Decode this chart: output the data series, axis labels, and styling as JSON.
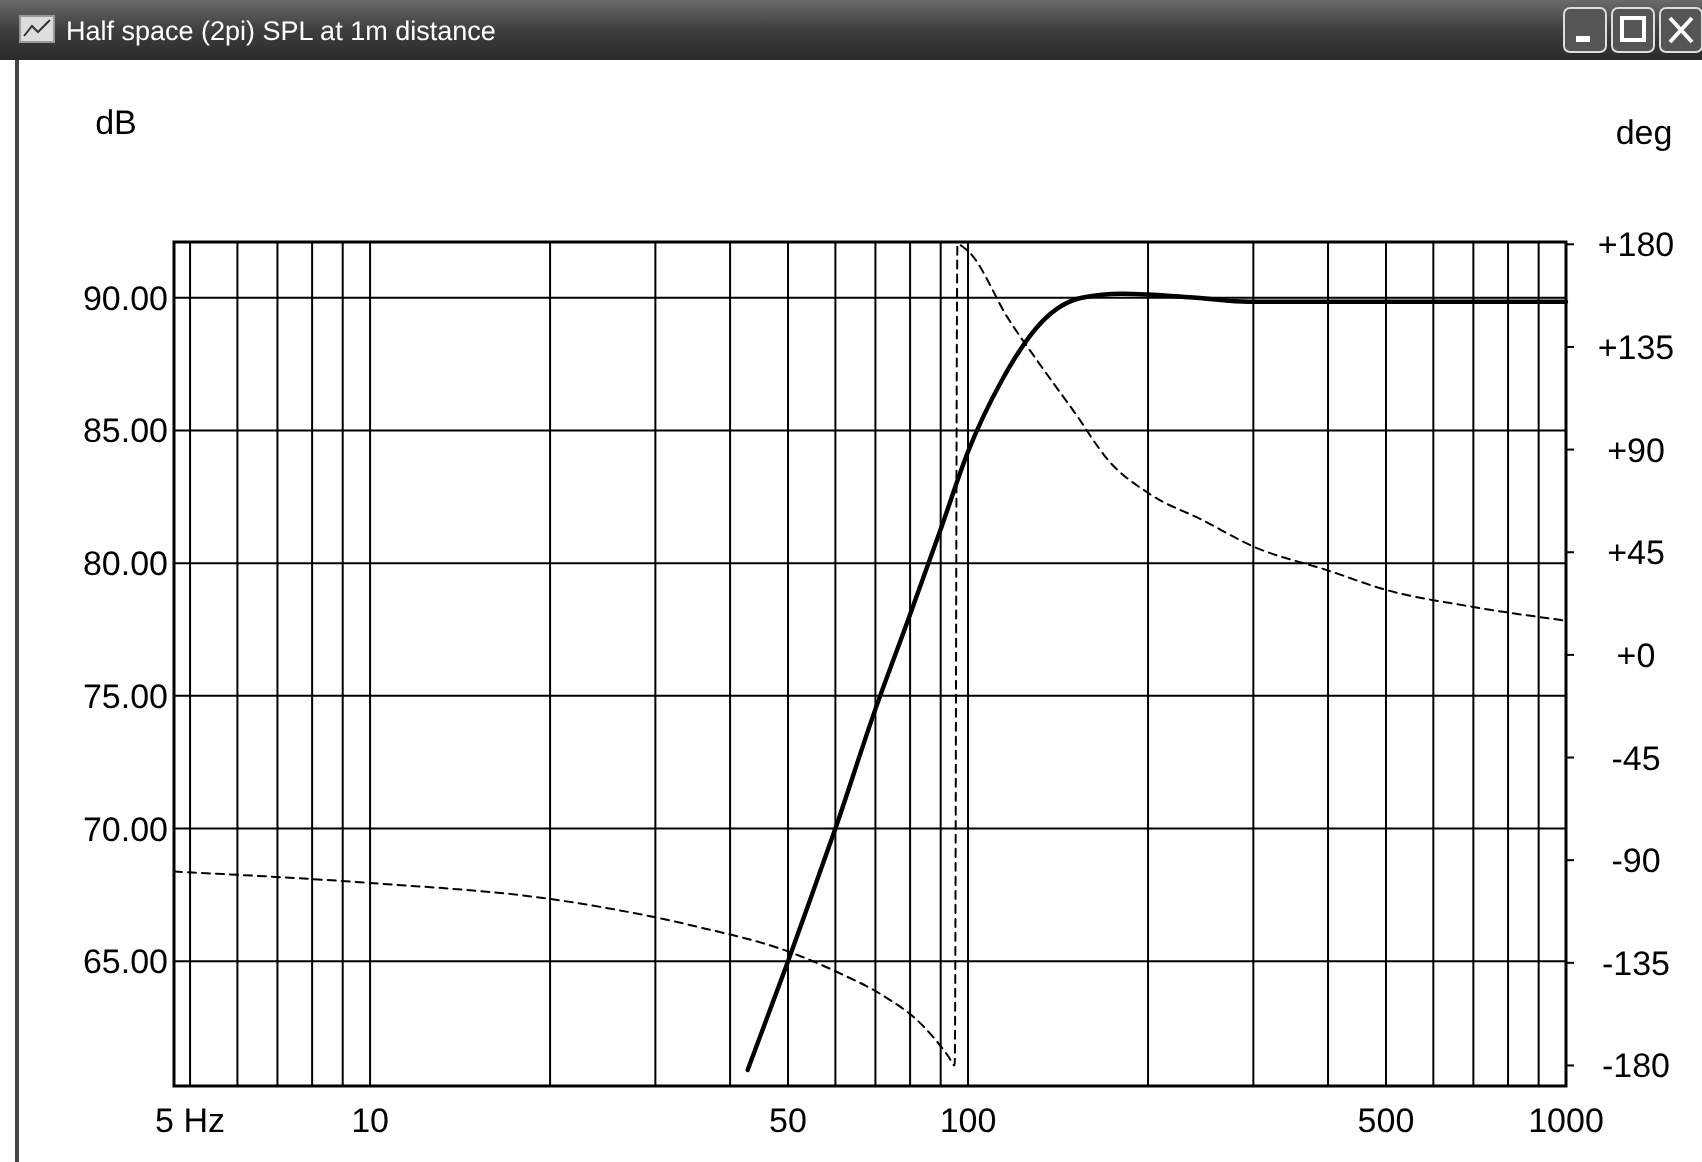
{
  "chart_data": {
    "type": "line",
    "title": "Half space (2pi) SPL at 1m distance",
    "ylabel": "dB",
    "y2label": "deg",
    "log": "x",
    "grid": true,
    "xlim": [
      4.7,
      1000
    ],
    "xticks": [
      {
        "value": 5,
        "label": "5 Hz"
      },
      {
        "value": 6,
        "label": null
      },
      {
        "value": 7,
        "label": null
      },
      {
        "value": 8,
        "label": null
      },
      {
        "value": 9,
        "label": null
      },
      10,
      {
        "value": 20,
        "label": null
      },
      {
        "value": 30,
        "label": null
      },
      {
        "value": 40,
        "label": null
      },
      50,
      {
        "value": 60,
        "label": null
      },
      {
        "value": 70,
        "label": null
      },
      {
        "value": 80,
        "label": null
      },
      {
        "value": 90,
        "label": null
      },
      100,
      {
        "value": 200,
        "label": null
      },
      {
        "value": 300,
        "label": null
      },
      {
        "value": 400,
        "label": null
      },
      500,
      {
        "value": 600,
        "label": null
      },
      {
        "value": 700,
        "label": null
      },
      {
        "value": 800,
        "label": null
      },
      {
        "value": 900,
        "label": null
      },
      1000
    ],
    "ylim": [
      60.3,
      92.1
    ],
    "yticks": [
      {
        "value": 65,
        "label": "65.00"
      },
      {
        "value": 70,
        "label": "70.00"
      },
      {
        "value": 75,
        "label": "75.00"
      },
      {
        "value": 80,
        "label": "80.00"
      },
      {
        "value": 85,
        "label": "85.00"
      },
      {
        "value": 90,
        "label": "90.00"
      }
    ],
    "y2lim": [
      -189,
      181
    ],
    "y2ticks": [
      {
        "value": 180,
        "label": "+180"
      },
      {
        "value": 135,
        "label": "+135"
      },
      {
        "value": 90,
        "label": "+90"
      },
      {
        "value": 45,
        "label": "+45"
      },
      {
        "value": 0,
        "label": "+0"
      },
      -45,
      -90,
      -135,
      -180
    ],
    "series": [
      {
        "color": "#000000",
        "line_style": "solid",
        "x": [
          42.8,
          50,
          55,
          60,
          70,
          79.5,
          90.4,
          100,
          114,
          133,
          155,
          181,
          241,
          295,
          1000
        ],
        "values": [
          60.9,
          65,
          67.6,
          70,
          74.5,
          77.9,
          81.4,
          84.2,
          86.9,
          89.1,
          90,
          90.15,
          90,
          89.85,
          89.85
        ]
      },
      {
        "color": "#000000",
        "line_style": "dashed",
        "axis": "y2",
        "x": [
          4.7,
          10,
          20,
          35,
          50,
          61.5,
          71.7,
          83.6,
          92.7,
          95,
          96,
          100,
          117,
          133,
          151,
          172,
          200,
          247,
          300,
          400,
          500,
          700,
          1000
        ],
        "values": [
          -95,
          -100,
          -107,
          -119,
          -130,
          -140,
          -149,
          -162,
          -176,
          -180,
          180,
          177,
          147,
          126,
          106,
          85,
          71,
          59,
          47.5,
          37,
          28.5,
          21,
          15
        ]
      }
    ]
  }
}
